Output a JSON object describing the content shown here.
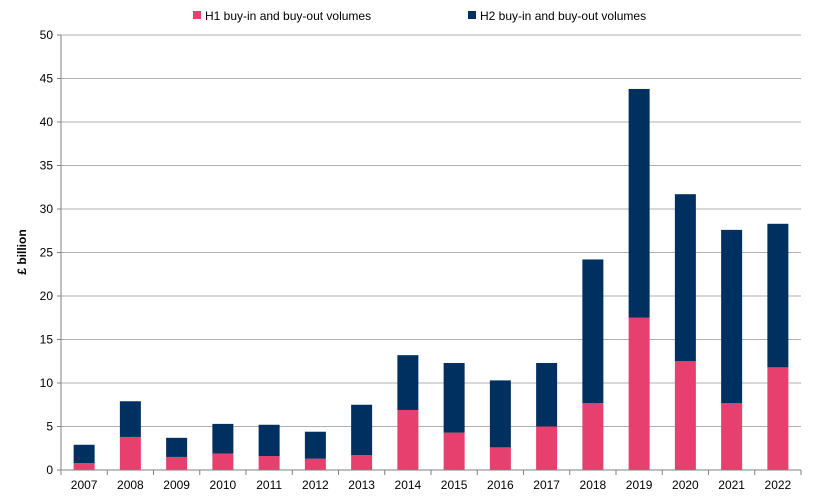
{
  "chart_data": {
    "type": "bar",
    "stacked": true,
    "categories": [
      "2007",
      "2008",
      "2009",
      "2010",
      "2011",
      "2012",
      "2013",
      "2014",
      "2015",
      "2016",
      "2017",
      "2018",
      "2019",
      "2020",
      "2021",
      "2022"
    ],
    "series": [
      {
        "name": "H1 buy-in and buy-out volumes",
        "color": "#e8406e",
        "values": [
          0.8,
          3.8,
          1.5,
          1.9,
          1.6,
          1.3,
          1.7,
          6.9,
          4.3,
          2.6,
          5.0,
          7.7,
          17.5,
          12.5,
          7.7,
          11.8
        ]
      },
      {
        "name": "H2 buy-in and buy-out volumes",
        "color": "#003060",
        "values": [
          2.1,
          4.1,
          2.2,
          3.4,
          3.6,
          3.1,
          5.8,
          6.3,
          8.0,
          7.7,
          7.3,
          16.5,
          26.3,
          19.2,
          19.9,
          16.5
        ]
      }
    ],
    "ylabel": "£ billion",
    "ylim": [
      0,
      50
    ],
    "yticks": [
      "0",
      "5",
      "10",
      "15",
      "20",
      "25",
      "30",
      "35",
      "40",
      "45",
      "50"
    ],
    "grid": true,
    "legend_position": "top"
  }
}
